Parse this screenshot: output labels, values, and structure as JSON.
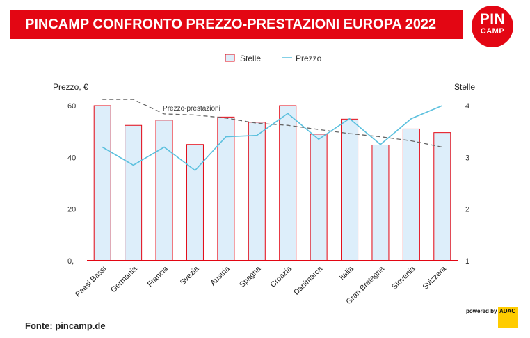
{
  "header": {
    "title": "PINCAMP CONFRONTO PREZZO-PRESTAZIONI EUROPA 2022"
  },
  "logo": {
    "line1": "PIN",
    "line2": "CAMP"
  },
  "footer": {
    "source": "Fonte: pincamp.de",
    "powered_by": "powered by",
    "adac": "ADAC"
  },
  "colors": {
    "brand": "#e30613",
    "bar_fill": "#ddeefa",
    "bar_stroke": "#e30613",
    "price_line": "#5bc0de",
    "value_line": "#666666"
  },
  "chart_data": {
    "type": "bar",
    "categories": [
      "Paesi Bassi",
      "Germania",
      "Francia",
      "Svezia",
      "Austria",
      "Spagna",
      "Croazia",
      "Danimarca",
      "Italia",
      "Gran Bretagna",
      "Slovenia",
      "Svizzera"
    ],
    "series": [
      {
        "name": "Stelle",
        "type": "bar",
        "axis": "right",
        "values": [
          4.0,
          3.62,
          3.72,
          3.25,
          3.78,
          3.68,
          4.0,
          3.45,
          3.74,
          3.24,
          3.55,
          3.48
        ]
      },
      {
        "name": "Prezzo",
        "type": "line",
        "axis": "left",
        "values": [
          44,
          37,
          44,
          35,
          48,
          48.5,
          57,
          47,
          55,
          45,
          55,
          60
        ]
      },
      {
        "type": "line",
        "style": "dashed",
        "axis": "right",
        "values": [
          4.12,
          4.12,
          3.84,
          3.82,
          3.76,
          3.66,
          3.62,
          3.54,
          3.46,
          3.4,
          3.32,
          3.2
        ]
      }
    ],
    "annotations": [
      "Prezzo-prestazioni"
    ],
    "ylabel_left": "Prezzo, €",
    "ylabel_right": "Stelle",
    "ylim_left": [
      0,
      60
    ],
    "ylim_right": [
      1,
      4
    ],
    "yticks_left": [
      "0,",
      "20",
      "40",
      "60"
    ],
    "yticks_right": [
      "1",
      "2",
      "3",
      "4"
    ],
    "grid": false,
    "legend": {
      "placement": "top-center",
      "items": [
        "Stelle",
        "Prezzo"
      ]
    }
  }
}
